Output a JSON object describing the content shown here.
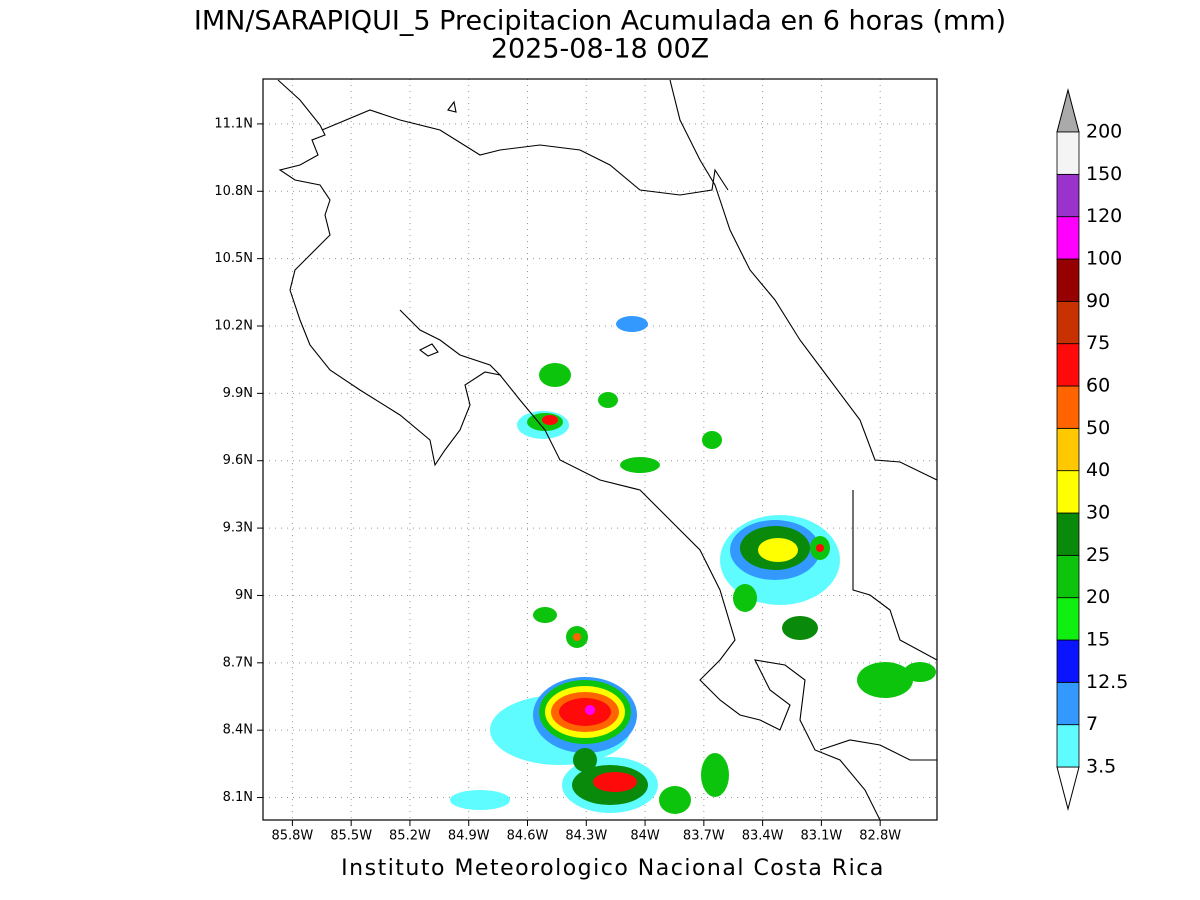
{
  "map": {
    "title": "IMN/SARAPIQUI_5 Precipitacion Acumulada en 6 horas (mm)",
    "subtitle": "2025-08-18 00Z",
    "footer": "Instituto Meteorologico Nacional Costa Rica",
    "xlim": [
      -85.95,
      -82.51
    ],
    "ylim": [
      8.0,
      11.3
    ],
    "grid": true,
    "xticks": [
      {
        "value": -85.8,
        "label": "85.8W"
      },
      {
        "value": -85.5,
        "label": "85.5W"
      },
      {
        "value": -85.2,
        "label": "85.2W"
      },
      {
        "value": -84.9,
        "label": "84.9W"
      },
      {
        "value": -84.6,
        "label": "84.6W"
      },
      {
        "value": -84.3,
        "label": "84.3W"
      },
      {
        "value": -84.0,
        "label": "84W"
      },
      {
        "value": -83.7,
        "label": "83.7W"
      },
      {
        "value": -83.4,
        "label": "83.4W"
      },
      {
        "value": -83.1,
        "label": "83.1W"
      },
      {
        "value": -82.8,
        "label": "82.8W"
      }
    ],
    "yticks": [
      {
        "value": 8.1,
        "label": "8.1N"
      },
      {
        "value": 8.4,
        "label": "8.4N"
      },
      {
        "value": 8.7,
        "label": "8.7N"
      },
      {
        "value": 9.0,
        "label": "9N"
      },
      {
        "value": 9.3,
        "label": "9.3N"
      },
      {
        "value": 9.6,
        "label": "9.6N"
      },
      {
        "value": 9.9,
        "label": "9.9N"
      },
      {
        "value": 10.2,
        "label": "10.2N"
      },
      {
        "value": 10.5,
        "label": "10.5N"
      },
      {
        "value": 10.8,
        "label": "10.8N"
      },
      {
        "value": 11.1,
        "label": "11.1N"
      }
    ],
    "colorbar": {
      "levels": [
        3.5,
        7,
        12.5,
        15,
        20,
        25,
        30,
        40,
        50,
        60,
        75,
        90,
        100,
        120,
        150,
        200
      ],
      "colors": [
        "#5ffcff",
        "#3399ff",
        "#0a14ff",
        "#10f010",
        "#0cc40c",
        "#0a8a0a",
        "#ffff00",
        "#ffc800",
        "#ff6400",
        "#ff0a0a",
        "#c83200",
        "#960000",
        "#ff00ff",
        "#9933cc",
        "#f4f4f4"
      ],
      "under_color": "#ffffff",
      "over_color": "#aaaaaa"
    }
  }
}
